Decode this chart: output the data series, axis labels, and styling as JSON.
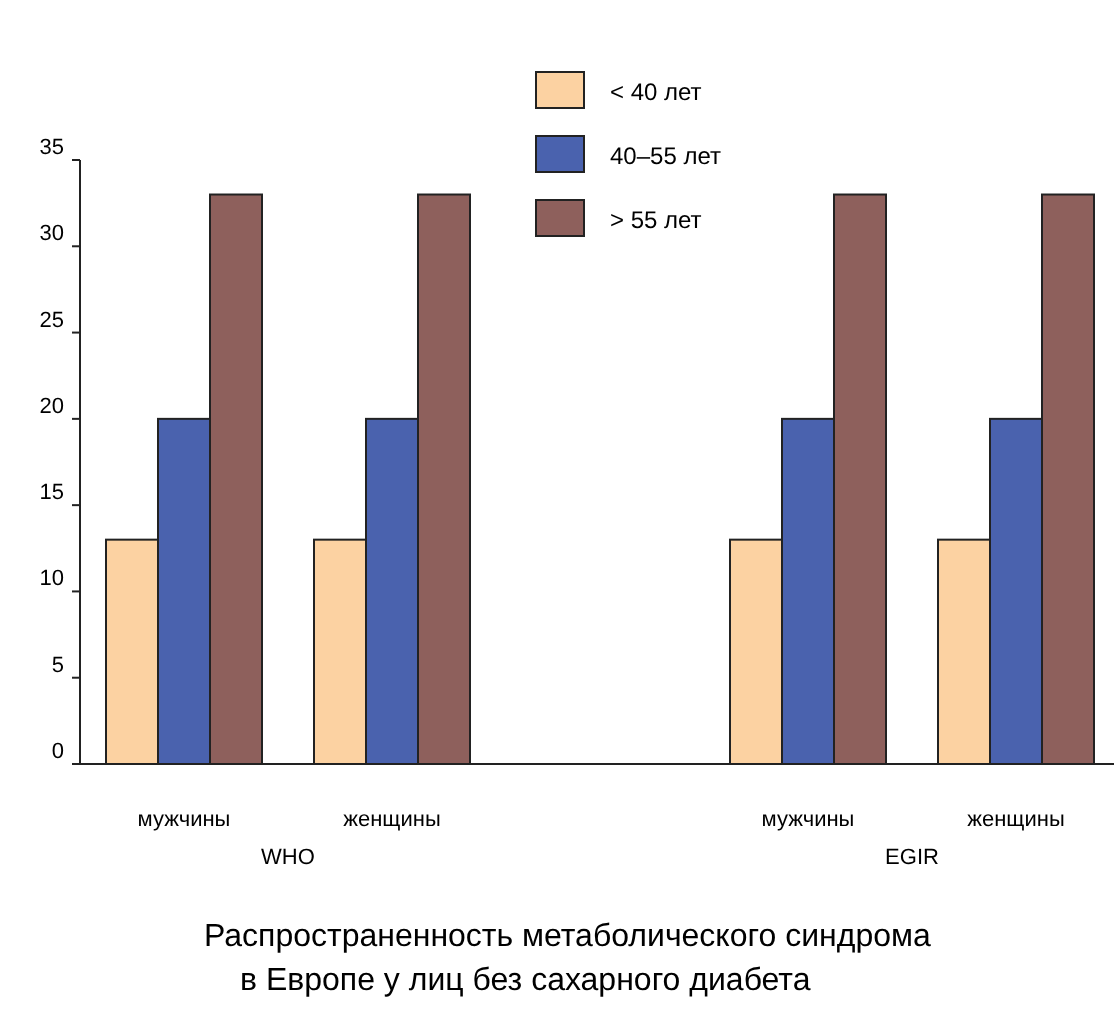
{
  "chart_data": {
    "type": "bar",
    "title": "Распространенность метаболического синдрома\nв Европе у лиц без сахарного диабета",
    "categories": [
      "мужчины",
      "женщины",
      null,
      "мужчины",
      "женщины"
    ],
    "series": [
      {
        "name": "< 40 лет",
        "color": "#fcd2a2",
        "values": [
          13,
          13,
          null,
          13,
          13
        ]
      },
      {
        "name": "40–55 лет",
        "color": "#4a62ae",
        "values": [
          20,
          20,
          null,
          20,
          20
        ]
      },
      {
        "name": "> 55 лет",
        "color": "#8e605c",
        "values": [
          33,
          33,
          null,
          33,
          33
        ]
      }
    ],
    "ylim": [
      0,
      35
    ],
    "yticks": [
      0,
      5,
      10,
      15,
      20,
      25,
      30,
      35
    ],
    "grid": false,
    "legend": "top",
    "annotations": [
      "WHO",
      "EGIR"
    ]
  }
}
